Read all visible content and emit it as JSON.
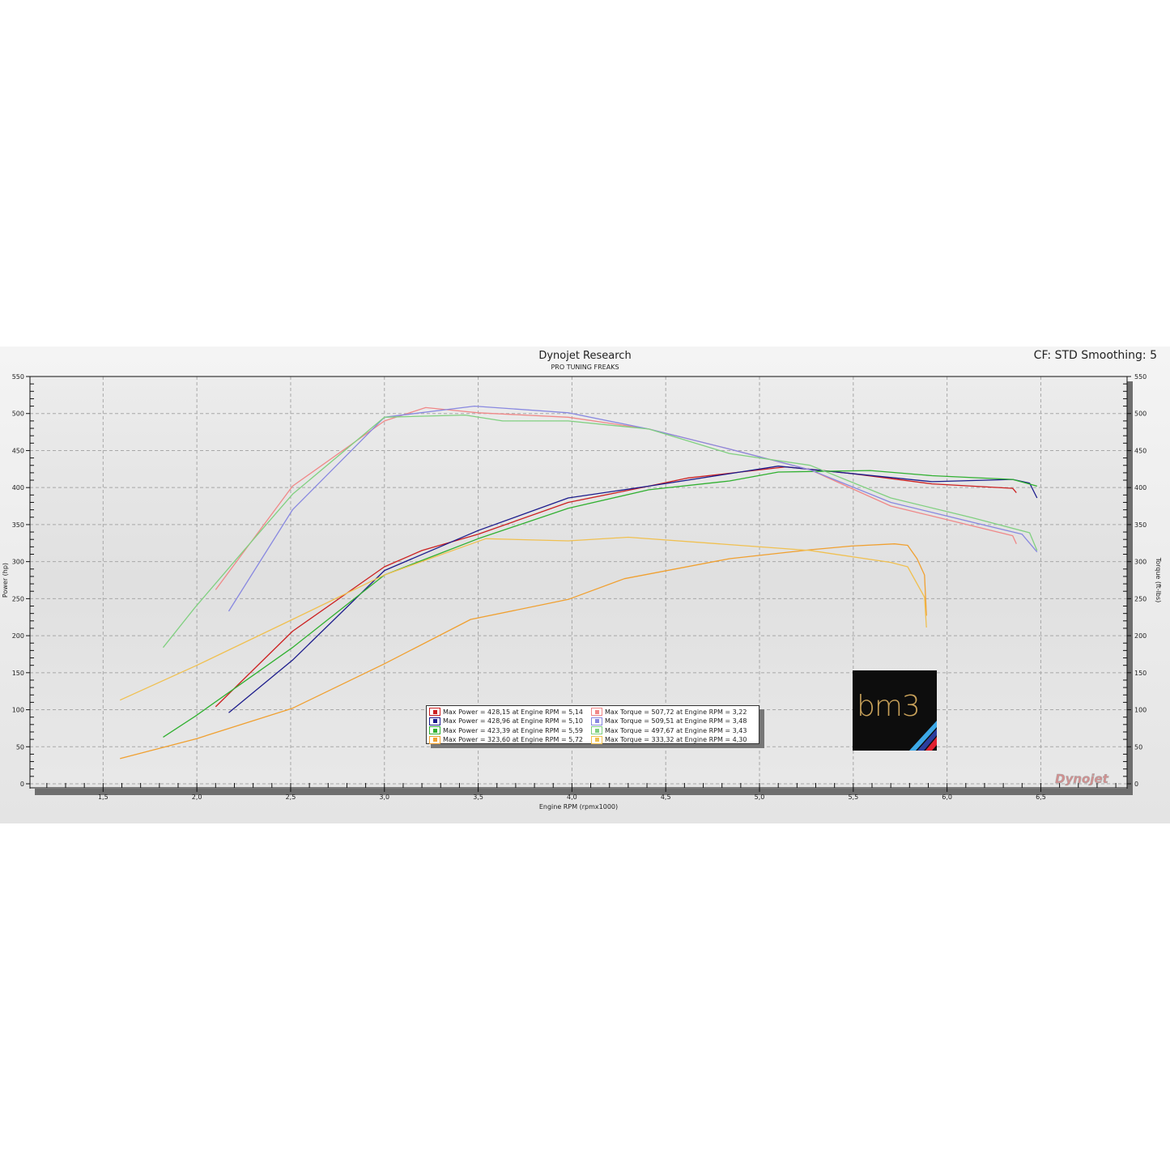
{
  "header": {
    "title": "Dynojet Research",
    "subtitle": "PRO TUNING FREAKS",
    "settings": "CF: STD Smoothing: 5"
  },
  "logos": {
    "bm3": "bm3",
    "dynojet": "Dynojet"
  },
  "chart_data": {
    "type": "line",
    "title": "Dynojet Research",
    "subtitle": "PRO TUNING FREAKS",
    "xlabel": "Engine RPM (rpmx1000)",
    "ylabel": "Power (hp)",
    "y2label": "Torque (ft-lbs)",
    "xlim": [
      1.11,
      6.96
    ],
    "ylim": [
      0,
      550
    ],
    "y2lim": [
      0,
      550
    ],
    "xticks": [
      "1,5",
      "2,0",
      "2,5",
      "3,0",
      "3,5",
      "4,0",
      "4,5",
      "5,0",
      "5,5",
      "6,0",
      "6,5"
    ],
    "xtick_values": [
      1.5,
      2.0,
      2.5,
      3.0,
      3.5,
      4.0,
      4.5,
      5.0,
      5.5,
      6.0,
      6.5
    ],
    "yticks": [
      0,
      50,
      100,
      150,
      200,
      250,
      300,
      350,
      400,
      450,
      500,
      550
    ],
    "grid": true,
    "legend_placement": "bottom-center",
    "series": [
      {
        "kind": "power",
        "color": "#cc2020",
        "legend": "Max Power = 428,15 at Engine RPM = 5,14",
        "points": [
          [
            2.1,
            104
          ],
          [
            2.51,
            206
          ],
          [
            3.0,
            293
          ],
          [
            3.2,
            315
          ],
          [
            3.5,
            337
          ],
          [
            3.98,
            380
          ],
          [
            4.41,
            402
          ],
          [
            4.62,
            413
          ],
          [
            5.14,
            428
          ],
          [
            5.49,
            419
          ],
          [
            5.92,
            405
          ],
          [
            6.35,
            399
          ],
          [
            6.37,
            393
          ]
        ]
      },
      {
        "kind": "power",
        "color": "#1c1c8c",
        "legend": "Max Power = 428,96 at Engine RPM = 5,10",
        "points": [
          [
            2.17,
            96
          ],
          [
            2.51,
            167
          ],
          [
            3.0,
            288
          ],
          [
            3.5,
            342
          ],
          [
            3.98,
            386
          ],
          [
            4.41,
            402
          ],
          [
            5.1,
            429
          ],
          [
            5.49,
            419
          ],
          [
            5.92,
            408
          ],
          [
            6.35,
            411
          ],
          [
            6.44,
            406
          ],
          [
            6.48,
            386
          ]
        ]
      },
      {
        "kind": "power",
        "color": "#30b030",
        "legend": "Max Power = 423,39 at Engine RPM = 5,59",
        "points": [
          [
            1.82,
            63
          ],
          [
            1.99,
            91
          ],
          [
            2.51,
            184
          ],
          [
            3.0,
            282
          ],
          [
            3.5,
            331
          ],
          [
            3.98,
            372
          ],
          [
            4.41,
            397
          ],
          [
            4.84,
            409
          ],
          [
            5.1,
            421
          ],
          [
            5.59,
            423
          ],
          [
            5.92,
            416
          ],
          [
            6.35,
            411
          ],
          [
            6.48,
            402
          ]
        ]
      },
      {
        "kind": "power",
        "color": "#f0a030",
        "legend": "Max Power = 323,60 at Engine RPM = 5,72",
        "points": [
          [
            1.59,
            34
          ],
          [
            2.0,
            61
          ],
          [
            2.51,
            102
          ],
          [
            3.0,
            162
          ],
          [
            3.46,
            222
          ],
          [
            3.98,
            249
          ],
          [
            4.28,
            277
          ],
          [
            4.84,
            304
          ],
          [
            5.27,
            316
          ],
          [
            5.49,
            321
          ],
          [
            5.72,
            324
          ],
          [
            5.79,
            322
          ],
          [
            5.84,
            304
          ],
          [
            5.88,
            282
          ],
          [
            5.89,
            227
          ]
        ]
      },
      {
        "kind": "torque",
        "color": "#f08888",
        "legend": "Max Torque = 507,72 at Engine RPM = 3,22",
        "points": [
          [
            2.1,
            262
          ],
          [
            2.51,
            402
          ],
          [
            3.0,
            490
          ],
          [
            3.22,
            508
          ],
          [
            3.5,
            501
          ],
          [
            3.98,
            495
          ],
          [
            4.41,
            479
          ],
          [
            4.84,
            452
          ],
          [
            5.27,
            424
          ],
          [
            5.7,
            375
          ],
          [
            6.14,
            348
          ],
          [
            6.35,
            335
          ],
          [
            6.37,
            324
          ]
        ]
      },
      {
        "kind": "torque",
        "color": "#8888e0",
        "legend": "Max Torque = 509,51 at Engine RPM = 3,48",
        "points": [
          [
            2.17,
            233
          ],
          [
            2.51,
            370
          ],
          [
            3.0,
            495
          ],
          [
            3.48,
            510
          ],
          [
            3.98,
            501
          ],
          [
            4.41,
            479
          ],
          [
            4.84,
            452
          ],
          [
            5.27,
            424
          ],
          [
            5.7,
            380
          ],
          [
            6.14,
            353
          ],
          [
            6.4,
            337
          ],
          [
            6.48,
            313
          ]
        ]
      },
      {
        "kind": "torque",
        "color": "#80d080",
        "legend": "Max Torque = 497,67 at Engine RPM = 3,43",
        "points": [
          [
            1.82,
            184
          ],
          [
            1.99,
            238
          ],
          [
            2.25,
            315
          ],
          [
            2.51,
            391
          ],
          [
            3.0,
            495
          ],
          [
            3.43,
            498
          ],
          [
            3.63,
            490
          ],
          [
            3.98,
            490
          ],
          [
            4.41,
            479
          ],
          [
            4.84,
            446
          ],
          [
            5.27,
            430
          ],
          [
            5.7,
            386
          ],
          [
            6.14,
            359
          ],
          [
            6.44,
            339
          ],
          [
            6.48,
            315
          ]
        ]
      },
      {
        "kind": "torque",
        "color": "#f0c050",
        "legend": "Max Torque = 333,32 at Engine RPM = 4,30",
        "points": [
          [
            1.59,
            113
          ],
          [
            2.0,
            160
          ],
          [
            2.51,
            222
          ],
          [
            3.0,
            282
          ],
          [
            3.54,
            331
          ],
          [
            3.98,
            328
          ],
          [
            4.3,
            333
          ],
          [
            4.84,
            323
          ],
          [
            5.27,
            315
          ],
          [
            5.7,
            299
          ],
          [
            5.79,
            293
          ],
          [
            5.88,
            252
          ],
          [
            5.89,
            211
          ]
        ]
      }
    ]
  }
}
